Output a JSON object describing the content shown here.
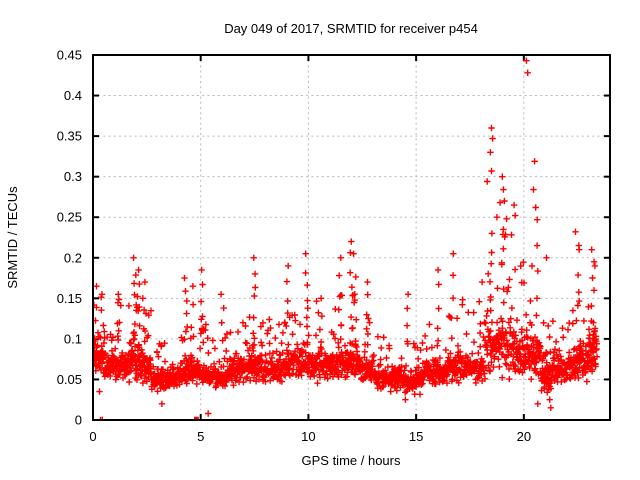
{
  "chart_data": {
    "type": "scatter",
    "title": "Day 049 of 2017, SRMTID for receiver p454",
    "xlabel": "GPS time / hours",
    "ylabel": "SRMTID / TECUs",
    "xlim": [
      0,
      24
    ],
    "ylim": [
      0,
      0.45
    ],
    "xticks": {
      "values": [
        0,
        5,
        10,
        15,
        20
      ],
      "labels": [
        "0",
        "5",
        "10",
        "15",
        "20"
      ]
    },
    "yticks": {
      "values": [
        0,
        0.05,
        0.1,
        0.15,
        0.2,
        0.25,
        0.3,
        0.35,
        0.4,
        0.45
      ],
      "labels": [
        "0",
        "0.05",
        "0.1",
        "0.15",
        "0.2",
        "0.25",
        "0.3",
        "0.35",
        "0.4",
        "0.45"
      ]
    },
    "grid": {
      "visible": true,
      "style": "dashed",
      "color": "#b8b8b8"
    },
    "border_color": "#000000",
    "marker": {
      "shape": "plus",
      "color": "#ff0000",
      "size": 7,
      "stroke_width": 1.4
    },
    "legend": null,
    "seed": 20170049,
    "point_model": {
      "comment_bands": "dense baseline bands: [x0, x1, n, base, sd, ymax]",
      "bands": [
        [
          0.0,
          0.5,
          55,
          0.075,
          0.022,
          0.16
        ],
        [
          0.5,
          1.0,
          50,
          0.065,
          0.018,
          0.125
        ],
        [
          1.0,
          1.6,
          55,
          0.068,
          0.02,
          0.15
        ],
        [
          1.6,
          2.2,
          60,
          0.07,
          0.022,
          0.155
        ],
        [
          2.2,
          2.7,
          50,
          0.065,
          0.02,
          0.14
        ],
        [
          2.7,
          3.9,
          115,
          0.048,
          0.014,
          0.095
        ],
        [
          3.9,
          4.7,
          70,
          0.058,
          0.016,
          0.12
        ],
        [
          4.7,
          5.3,
          55,
          0.06,
          0.016,
          0.13
        ],
        [
          5.3,
          6.3,
          85,
          0.052,
          0.014,
          0.11
        ],
        [
          6.3,
          7.2,
          75,
          0.062,
          0.016,
          0.125
        ],
        [
          7.2,
          7.8,
          55,
          0.068,
          0.018,
          0.14
        ],
        [
          7.8,
          8.8,
          85,
          0.062,
          0.016,
          0.135
        ],
        [
          8.8,
          9.3,
          45,
          0.068,
          0.018,
          0.14
        ],
        [
          9.3,
          10.2,
          75,
          0.068,
          0.018,
          0.15
        ],
        [
          10.2,
          11.2,
          90,
          0.068,
          0.018,
          0.15
        ],
        [
          11.2,
          11.7,
          45,
          0.072,
          0.02,
          0.16
        ],
        [
          11.7,
          12.3,
          55,
          0.072,
          0.02,
          0.16
        ],
        [
          12.3,
          13.1,
          70,
          0.062,
          0.016,
          0.13
        ],
        [
          13.1,
          14.1,
          90,
          0.052,
          0.014,
          0.11
        ],
        [
          14.1,
          15.3,
          105,
          0.048,
          0.014,
          0.1
        ],
        [
          15.3,
          16.3,
          85,
          0.058,
          0.016,
          0.12
        ],
        [
          16.3,
          17.0,
          60,
          0.064,
          0.018,
          0.14
        ],
        [
          17.0,
          18.2,
          95,
          0.065,
          0.02,
          0.15
        ],
        [
          18.2,
          19.5,
          115,
          0.09,
          0.035,
          0.23
        ],
        [
          19.5,
          20.2,
          70,
          0.085,
          0.03,
          0.21
        ],
        [
          20.2,
          20.8,
          60,
          0.08,
          0.026,
          0.2
        ],
        [
          20.8,
          21.5,
          70,
          0.058,
          0.022,
          0.13
        ],
        [
          21.5,
          22.3,
          70,
          0.062,
          0.018,
          0.14
        ],
        [
          22.3,
          23.0,
          70,
          0.072,
          0.022,
          0.16
        ],
        [
          23.0,
          23.4,
          50,
          0.085,
          0.03,
          0.2
        ]
      ],
      "comment_spikes": "vertical spike columns: [x, ytop, n]",
      "spikes": [
        [
          0.1,
          0.165,
          4
        ],
        [
          1.2,
          0.155,
          5
        ],
        [
          1.95,
          0.2,
          7
        ],
        [
          2.1,
          0.185,
          5
        ],
        [
          2.35,
          0.17,
          5
        ],
        [
          4.3,
          0.175,
          6
        ],
        [
          4.6,
          0.165,
          4
        ],
        [
          5.05,
          0.185,
          6
        ],
        [
          6.0,
          0.155,
          4
        ],
        [
          7.5,
          0.2,
          7
        ],
        [
          9.0,
          0.19,
          6
        ],
        [
          9.9,
          0.205,
          7
        ],
        [
          10.6,
          0.15,
          4
        ],
        [
          11.45,
          0.2,
          6
        ],
        [
          12.0,
          0.22,
          8
        ],
        [
          12.15,
          0.205,
          5
        ],
        [
          12.75,
          0.17,
          5
        ],
        [
          14.6,
          0.155,
          4
        ],
        [
          16.05,
          0.185,
          5
        ],
        [
          16.7,
          0.205,
          5
        ],
        [
          18.0,
          0.17,
          4
        ],
        [
          18.5,
          0.23,
          8
        ],
        [
          19.0,
          0.235,
          7
        ],
        [
          20.6,
          0.215,
          5
        ],
        [
          22.5,
          0.21,
          5
        ],
        [
          23.2,
          0.195,
          5
        ]
      ],
      "comment_outliers": "individually visible extreme points: [x, y]",
      "outliers": [
        [
          0.42,
          0.155
        ],
        [
          0.3,
          0.035
        ],
        [
          3.2,
          0.02
        ],
        [
          5.35,
          0.008
        ],
        [
          14.5,
          0.025
        ],
        [
          18.3,
          0.294
        ],
        [
          18.45,
          0.33
        ],
        [
          18.5,
          0.36
        ],
        [
          18.55,
          0.347
        ],
        [
          18.5,
          0.307
        ],
        [
          18.75,
          0.25
        ],
        [
          18.9,
          0.268
        ],
        [
          19.0,
          0.3
        ],
        [
          19.05,
          0.284
        ],
        [
          19.1,
          0.27
        ],
        [
          19.2,
          0.248
        ],
        [
          19.55,
          0.265
        ],
        [
          19.6,
          0.252
        ],
        [
          20.12,
          0.443
        ],
        [
          20.18,
          0.428
        ],
        [
          20.5,
          0.319
        ],
        [
          20.45,
          0.284
        ],
        [
          20.55,
          0.262
        ],
        [
          20.62,
          0.247
        ],
        [
          20.65,
          0.02
        ],
        [
          21.05,
          0.2
        ],
        [
          21.2,
          0.025
        ],
        [
          21.25,
          0.015
        ],
        [
          22.4,
          0.232
        ],
        [
          22.55,
          0.215
        ],
        [
          23.15,
          0.21
        ],
        [
          23.3,
          0.19
        ]
      ],
      "comment_zeros": "points lying exactly on y = 0 (half-clipped by axis)",
      "zeros": [
        0.35,
        0.43,
        4.72,
        4.76,
        4.8,
        4.84,
        4.88
      ]
    }
  }
}
